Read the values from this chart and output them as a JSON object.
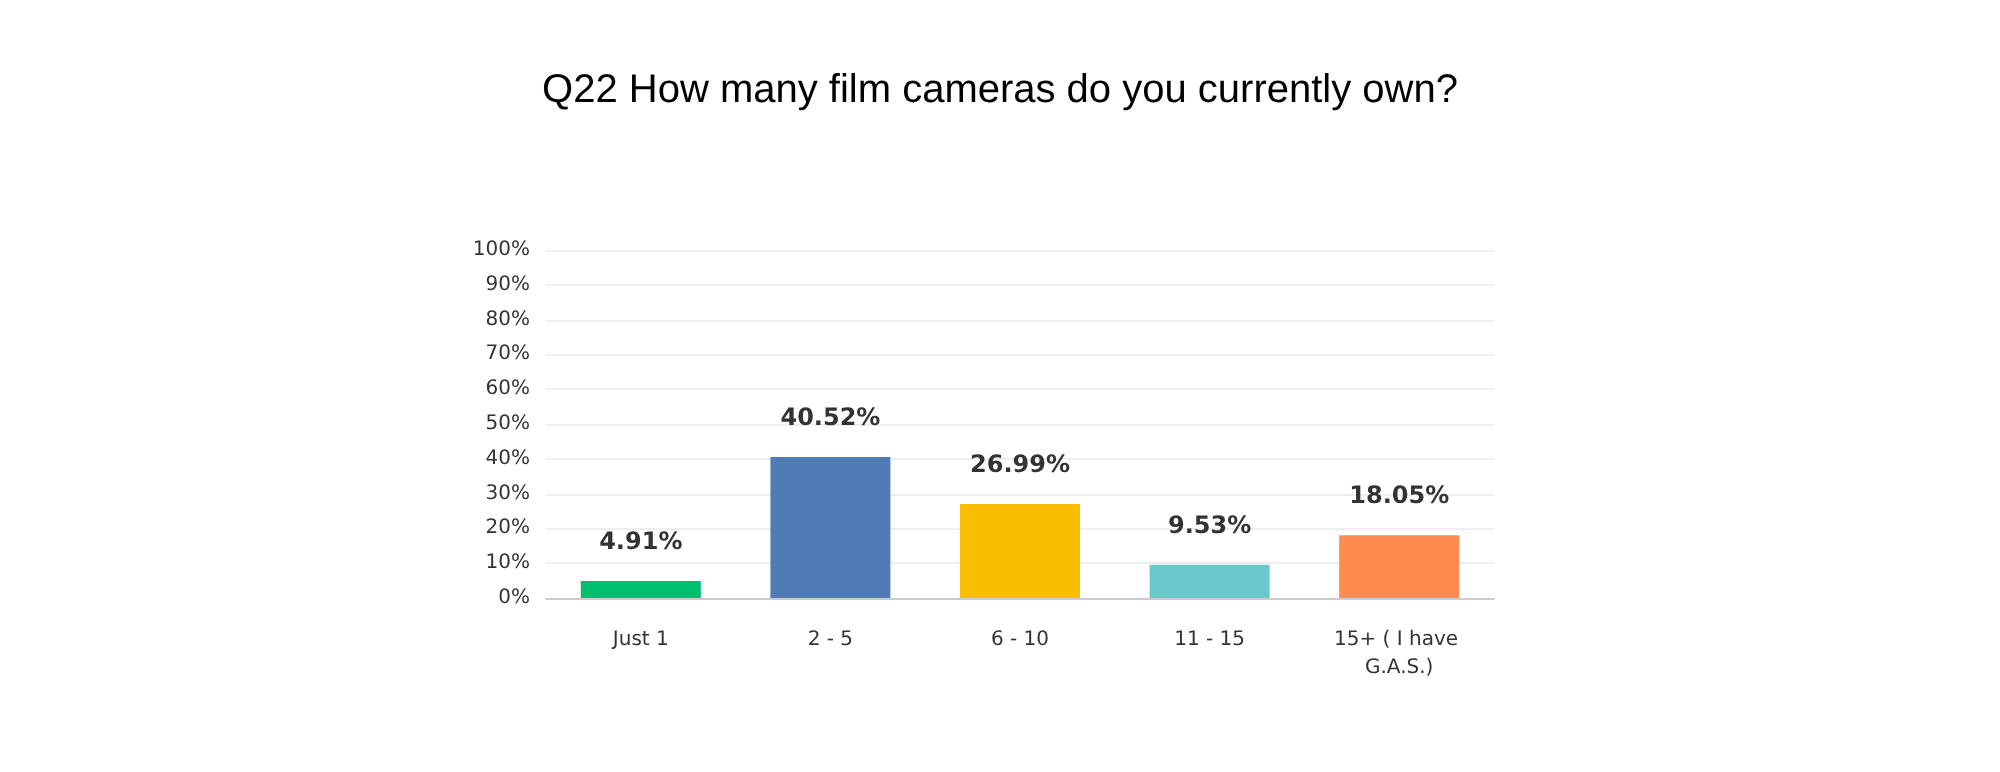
{
  "chart_data": {
    "type": "bar",
    "title": "Q22 How many film cameras do you currently own?",
    "categories": [
      "Just 1",
      "2 - 5",
      "6 - 10",
      "11 - 15",
      "15+ ( I have G.A.S.)"
    ],
    "values": [
      4.91,
      40.52,
      26.99,
      9.53,
      18.05
    ],
    "colors": [
      "#00bf6f",
      "#507cb6",
      "#f9be00",
      "#6bc8cd",
      "#ff8b4f"
    ],
    "value_labels": [
      "4.91%",
      "40.52%",
      "26.99%",
      "9.53%",
      "18.05%"
    ],
    "ylim": [
      0,
      100
    ],
    "yticks": [
      {
        "value": 0,
        "label": "0%"
      },
      {
        "value": 10,
        "label": "10%"
      },
      {
        "value": 20,
        "label": "20%"
      },
      {
        "value": 30,
        "label": "30%"
      },
      {
        "value": 40,
        "label": "40%"
      },
      {
        "value": 50,
        "label": "50%"
      },
      {
        "value": 60,
        "label": "60%"
      },
      {
        "value": 70,
        "label": "70%"
      },
      {
        "value": 80,
        "label": "80%"
      },
      {
        "value": 90,
        "label": "90%"
      },
      {
        "value": 100,
        "label": "100%"
      }
    ],
    "grid": true
  }
}
